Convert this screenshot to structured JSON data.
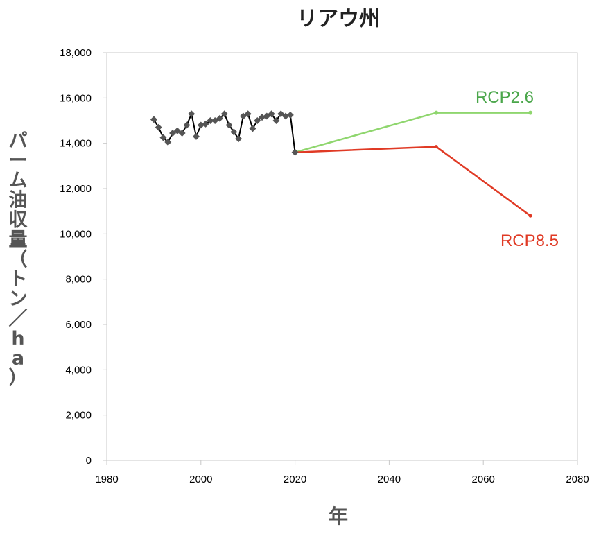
{
  "colors": {
    "observed_line": "#000000",
    "observed_marker": "#555555",
    "rcp26": "#8fd66e",
    "rcp26_label": "#4aa64a",
    "rcp85": "#e03a25",
    "axis": "#c8c8c8"
  },
  "chart_data": {
    "type": "line",
    "title": "リアウ州",
    "xlabel": "年",
    "ylabel": "パーム油収量（トン／ha）",
    "xlim": [
      1980,
      2080
    ],
    "ylim": [
      0,
      18000
    ],
    "x_ticks": [
      "1980",
      "2000",
      "2020",
      "2040",
      "2060",
      "2080"
    ],
    "y_ticks": [
      "0",
      "2,000",
      "4,000",
      "6,000",
      "8,000",
      "10,000",
      "12,000",
      "14,000",
      "16,000",
      "18,000"
    ],
    "grid": false,
    "series": [
      {
        "x": [
          1990,
          1991,
          1992,
          1993,
          1994,
          1995,
          1996,
          1997,
          1998,
          1999,
          2000,
          2001,
          2002,
          2003,
          2004,
          2005,
          2006,
          2007,
          2008,
          2009,
          2010,
          2011,
          2012,
          2013,
          2014,
          2015,
          2016,
          2017,
          2018,
          2019,
          2020
        ],
        "y": [
          15050,
          14700,
          14250,
          14050,
          14450,
          14550,
          14450,
          14800,
          15300,
          14300,
          14800,
          14850,
          15000,
          15000,
          15100,
          15300,
          14800,
          14500,
          14200,
          15200,
          15300,
          14650,
          15000,
          15150,
          15200,
          15300,
          15000,
          15300,
          15200,
          15250,
          13600
        ]
      },
      {
        "name": "RCP2.6",
        "x": [
          2020,
          2050,
          2070
        ],
        "y": [
          13600,
          15350,
          15350
        ]
      },
      {
        "name": "RCP8.5",
        "x": [
          2020,
          2050,
          2070
        ],
        "y": [
          13600,
          13850,
          10800
        ]
      }
    ]
  }
}
